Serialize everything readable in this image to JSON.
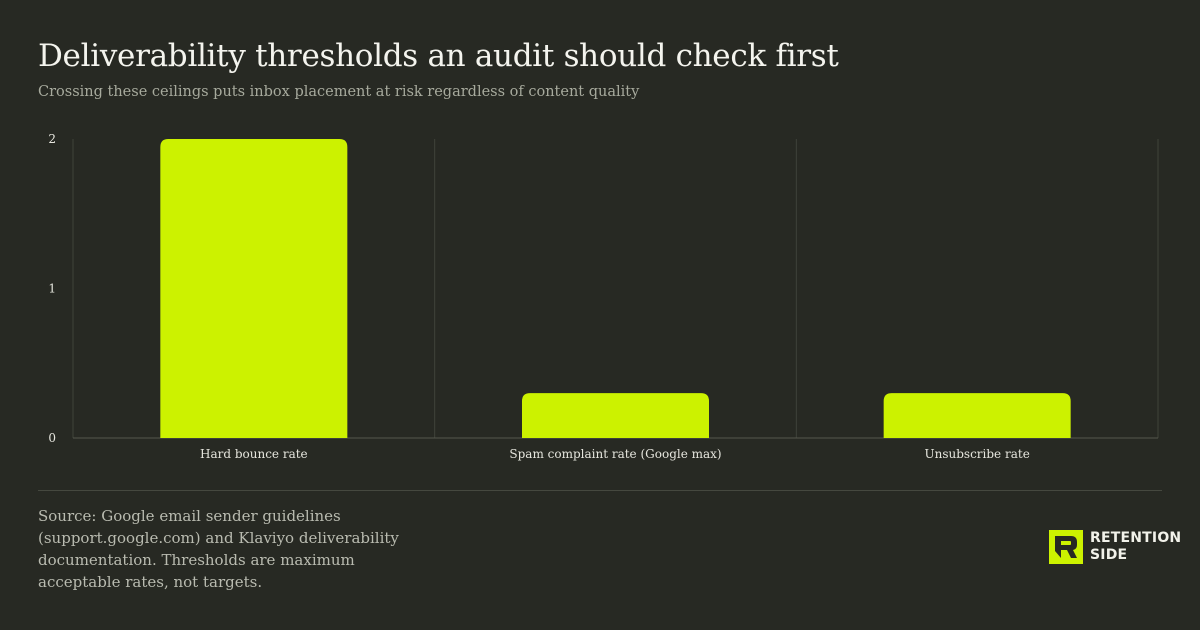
{
  "header": {
    "title": "Deliverability thresholds an audit should check first",
    "subtitle": "Crossing these ceilings puts inbox placement at risk regardless of content quality"
  },
  "chart_data": {
    "type": "bar",
    "title": "Deliverability thresholds an audit should check first",
    "subtitle": "Crossing these ceilings puts inbox placement at risk regardless of content quality",
    "categories": [
      "Hard bounce rate",
      "Spam complaint rate (Google max)",
      "Unsubscribe rate"
    ],
    "values": [
      2,
      0.3,
      0.3
    ],
    "xlabel": "",
    "ylabel": "",
    "ylim": [
      0,
      2
    ],
    "yticks": [
      0,
      1,
      2
    ],
    "grid": "vertical separators between categories",
    "bar_color": "#ccf200"
  },
  "footer": {
    "source": "Source: Google email sender guidelines (support.google.com) and Klaviyo deliverability documentation. Thresholds are maximum acceptable rates, not targets.",
    "logo_line1": "RETENTION",
    "logo_line2": "SIDE"
  },
  "colors": {
    "background": "#272923",
    "accent": "#ccf200",
    "grid": "#3f423a"
  }
}
